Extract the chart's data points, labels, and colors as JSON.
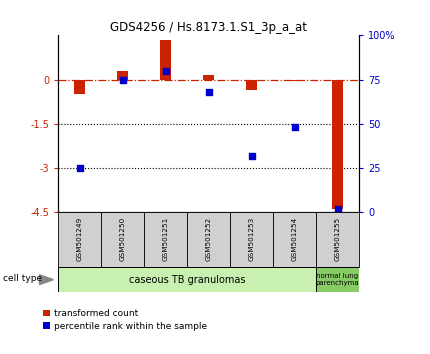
{
  "title": "GDS4256 / Hs.8173.1.S1_3p_a_at",
  "samples": [
    "GSM501249",
    "GSM501250",
    "GSM501251",
    "GSM501252",
    "GSM501253",
    "GSM501254",
    "GSM501255"
  ],
  "transformed_count": [
    -0.5,
    0.3,
    1.35,
    0.15,
    -0.35,
    -0.05,
    -4.4
  ],
  "percentile_rank": [
    25,
    75,
    80,
    68,
    32,
    48,
    2
  ],
  "ylim_left": [
    -4.5,
    1.5
  ],
  "ylim_right": [
    0,
    100
  ],
  "yticks_left": [
    0,
    -1.5,
    -3,
    -4.5
  ],
  "yticks_right": [
    0,
    25,
    50,
    75,
    100
  ],
  "ytick_labels_left": [
    "0",
    "-1.5",
    "-3",
    "-4.5"
  ],
  "ytick_labels_right": [
    "0",
    "25",
    "50",
    "75",
    "100%"
  ],
  "dotted_lines": [
    -1.5,
    -3
  ],
  "bar_color": "#cc2200",
  "dot_color": "#0000cc",
  "bar_width": 0.25,
  "dot_size": 20,
  "group1_label": "caseous TB granulomas",
  "group1_color": "#c8f0b0",
  "group2_label": "normal lung\nparenchyma",
  "group2_color": "#88cc66",
  "group1_samples": 6,
  "group2_samples": 1,
  "legend_label1": "transformed count",
  "legend_label2": "percentile rank within the sample",
  "cell_type_text": "cell type"
}
